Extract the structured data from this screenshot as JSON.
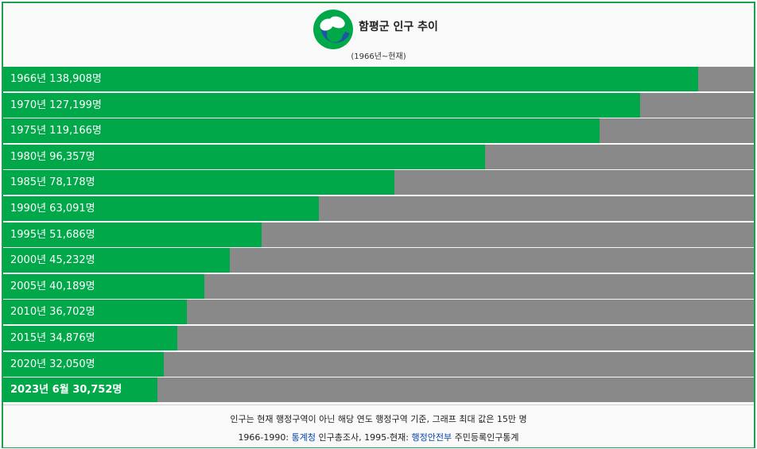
{
  "header": {
    "title": "함평군 인구 추이",
    "subtitle": "(1966년~현재)"
  },
  "chart_data": {
    "type": "bar",
    "orientation": "horizontal",
    "max_value": 150000,
    "categories": [
      "1966년",
      "1970년",
      "1975년",
      "1980년",
      "1985년",
      "1990년",
      "1995년",
      "2000년",
      "2005년",
      "2010년",
      "2015년",
      "2020년",
      "2023년 6월"
    ],
    "values": [
      138908,
      127199,
      119166,
      96357,
      78178,
      63091,
      51686,
      45232,
      40189,
      36702,
      34876,
      32050,
      30752
    ],
    "labels": [
      "1966년 138,908명",
      "1970년 127,199명",
      "1975년 119,166명",
      "1980년 96,357명",
      "1985년 78,178명",
      "1990년 63,091명",
      "1995년 51,686명",
      "2000년 45,232명",
      "2005년 40,189명",
      "2010년 36,702명",
      "2015년 34,876명",
      "2020년 32,050명",
      "2023년 6월 30,752명"
    ],
    "bar_color": "#00a84a",
    "track_color": "#898989"
  },
  "footer": {
    "note": "인구는 현재 행정구역이 아닌 해당 연도 행정구역 기준, 그래프 최대 값은 15만 명",
    "source_prefix": "1966-1990: ",
    "source_link1": "통계청",
    "source_mid": " 인구총조사, 1995-현재: ",
    "source_link2": "행정안전부",
    "source_suffix": " 주민등록인구통계"
  }
}
